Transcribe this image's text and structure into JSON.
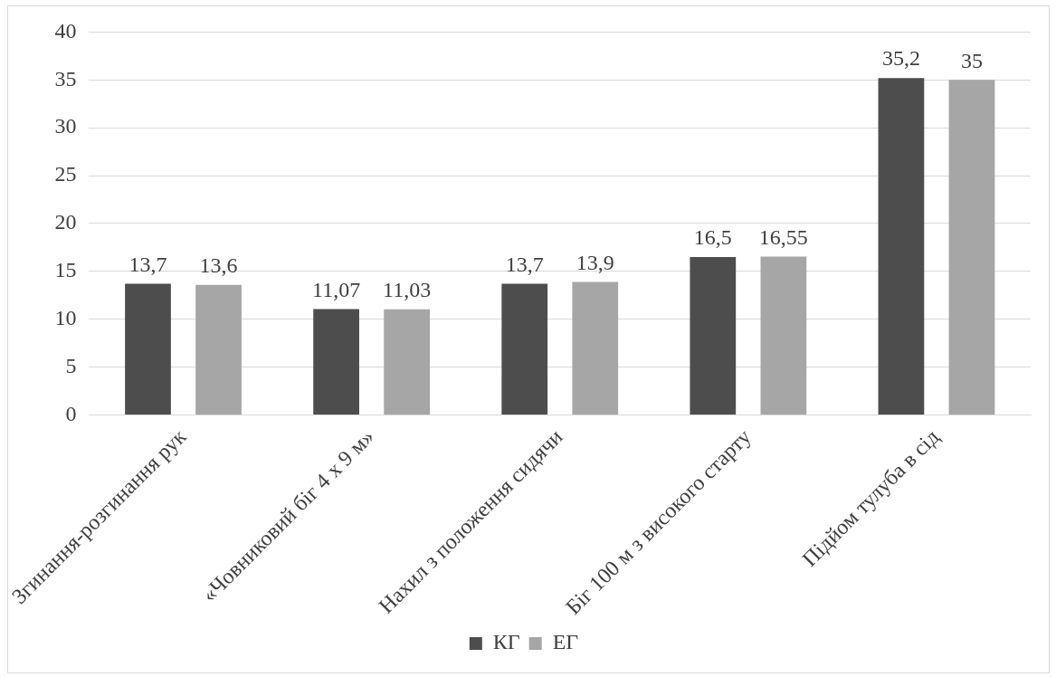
{
  "chart_data": {
    "type": "bar",
    "categories": [
      "Згинання-розгинання рук",
      "«Човниковий біг 4 х 9 м»",
      "Нахил з положення сидячи",
      "Біг 100 м з високого старту",
      "Підйом тулуба в сід"
    ],
    "series": [
      {
        "name": "КГ",
        "color": "#4d4d4d",
        "values": [
          13.7,
          11.07,
          13.7,
          16.5,
          35.2
        ],
        "value_labels": [
          "13,7",
          "11,07",
          "13,7",
          "16,5",
          "35,2"
        ]
      },
      {
        "name": "ЕГ",
        "color": "#a6a6a6",
        "values": [
          13.6,
          11.03,
          13.9,
          16.55,
          35
        ],
        "value_labels": [
          "13,6",
          "11,03",
          "13,9",
          "16,55",
          "35"
        ]
      }
    ],
    "ylim": [
      0,
      40
    ],
    "yticks": [
      0,
      5,
      10,
      15,
      20,
      25,
      30,
      35,
      40
    ],
    "grid": "y",
    "legend": "bottom"
  }
}
